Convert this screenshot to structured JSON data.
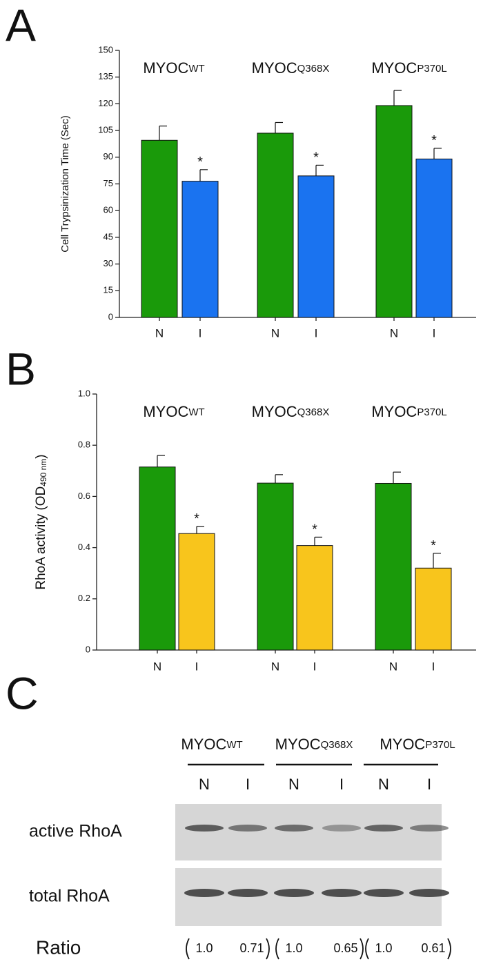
{
  "chart_data": [
    {
      "type": "bar",
      "letter": "A",
      "ylabel": "Cell Trypsinization Time (Sec)",
      "groups": [
        {
          "name": "MYOC",
          "subscript": "WT"
        },
        {
          "name": "MYOC",
          "subscript": "Q368X"
        },
        {
          "name": "MYOC",
          "subscript": "P370L"
        }
      ],
      "categories": [
        "N",
        "I",
        "N",
        "I",
        "N",
        "I"
      ],
      "values": [
        99.5,
        76.5,
        103.5,
        79.5,
        119,
        89
      ],
      "errors": [
        8,
        6.5,
        6,
        6,
        8.5,
        6
      ],
      "colors": [
        "#1a9a0a",
        "#1a73f0",
        "#1a9a0a",
        "#1a73f0",
        "#1a9a0a",
        "#1a73f0"
      ],
      "significance": [
        null,
        "*",
        null,
        "*",
        null,
        "*"
      ],
      "ylim": [
        0,
        150
      ],
      "yticks": [
        0,
        15,
        30,
        45,
        60,
        75,
        90,
        105,
        120,
        135,
        150
      ]
    },
    {
      "type": "bar",
      "letter": "B",
      "ylabel": {
        "text": "RhoA activity (OD",
        "subscript": "490 nm",
        "suffix": ")"
      },
      "groups": [
        {
          "name": "MYOC",
          "subscript": "WT"
        },
        {
          "name": "MYOC",
          "subscript": "Q368X"
        },
        {
          "name": "MYOC",
          "subscript": "P370L"
        }
      ],
      "categories": [
        "N",
        "I",
        "N",
        "I",
        "N",
        "I"
      ],
      "values": [
        0.715,
        0.455,
        0.652,
        0.408,
        0.651,
        0.32
      ],
      "errors": [
        0.045,
        0.028,
        0.033,
        0.033,
        0.044,
        0.058
      ],
      "colors": [
        "#1a9a0a",
        "#f8c51c",
        "#1a9a0a",
        "#f8c51c",
        "#1a9a0a",
        "#f8c51c"
      ],
      "significance": [
        null,
        "*",
        null,
        "*",
        null,
        "*"
      ],
      "ylim": [
        0,
        1
      ],
      "yticks": [
        0,
        0.2,
        0.4,
        0.6,
        0.8,
        {
          "value": 1,
          "label": "1.0"
        }
      ]
    }
  ],
  "blot": {
    "letter": "C",
    "groups": [
      {
        "name": "MYOC",
        "subscript": "WT"
      },
      {
        "name": "MYOC",
        "subscript": "Q368X"
      },
      {
        "name": "MYOC",
        "subscript": "P370L"
      }
    ],
    "lanes": [
      "N",
      "I",
      "N",
      "I",
      "N",
      "I"
    ],
    "rows": [
      "active RhoA",
      "total RhoA"
    ],
    "ratio_label": "Ratio",
    "ratios": [
      "1.0",
      "0.71",
      "1.0",
      "0.65",
      "1.0",
      "0.61"
    ]
  }
}
